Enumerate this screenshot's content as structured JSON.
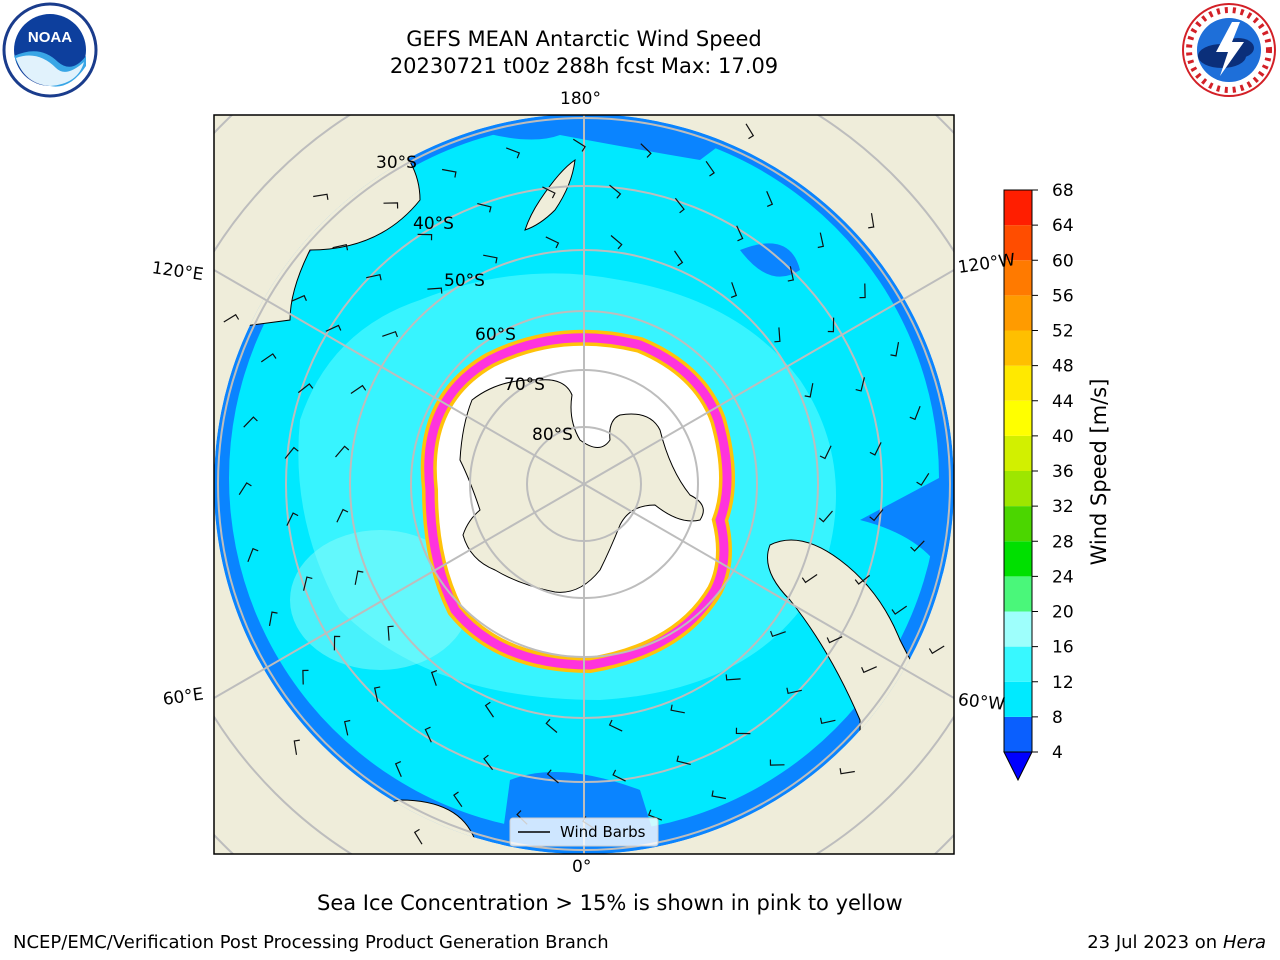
{
  "header": {
    "title": "GEFS MEAN Antarctic Wind Speed",
    "subtitle": "20230721 t00z 288h fcst   Max: 17.09"
  },
  "logos": {
    "left": {
      "text": "NOAA",
      "icon": "noaa-logo"
    },
    "right": {
      "icon": "national-weather-service-logo",
      "text": "NATIONAL WEATHER SERVICE"
    }
  },
  "map": {
    "projection": "south-polar-stereographic",
    "longitude_labels": {
      "top": "180°",
      "bottom": "0°",
      "left_upper": "120°E",
      "left_lower": "60°E",
      "right_upper": "120°W",
      "right_lower": "60°W"
    },
    "latitude_labels": [
      "30°S",
      "40°S",
      "50°S",
      "60°S",
      "70°S",
      "80°S"
    ],
    "legend": {
      "label": "Wind Barbs"
    },
    "colors": {
      "land": "#efedda",
      "ocean_low": "#0a84ff",
      "ocean_mid": "#00e9ff",
      "ocean_high": "#4af7ff",
      "sea_ice_edge": "#ff33dd",
      "sea_ice_yellow": "#ffc20a",
      "grid": "#bdbdbd"
    }
  },
  "colorbar": {
    "label": "Wind Speed [m/s]",
    "ticks": [
      "4",
      "8",
      "12",
      "16",
      "20",
      "24",
      "28",
      "32",
      "36",
      "40",
      "44",
      "48",
      "52",
      "56",
      "60",
      "64",
      "68"
    ],
    "colors": [
      "#0a5ffe",
      "#00eaff",
      "#38f8ff",
      "#9efffc",
      "#4af77a",
      "#00e000",
      "#4bd600",
      "#9ee600",
      "#d2f000",
      "#ffff00",
      "#ffe900",
      "#ffbf00",
      "#ff9b00",
      "#ff7a00",
      "#ff4d00",
      "#ff1e00"
    ],
    "extend_color": "#0000ff"
  },
  "notes": {
    "sea_ice": "Sea Ice Concentration > 15% is shown in pink to yellow"
  },
  "footer": {
    "left": "NCEP/EMC/Verification Post Processing Product Generation Branch",
    "right_prefix": "23 Jul 2023 on ",
    "right_host": "Hera"
  }
}
